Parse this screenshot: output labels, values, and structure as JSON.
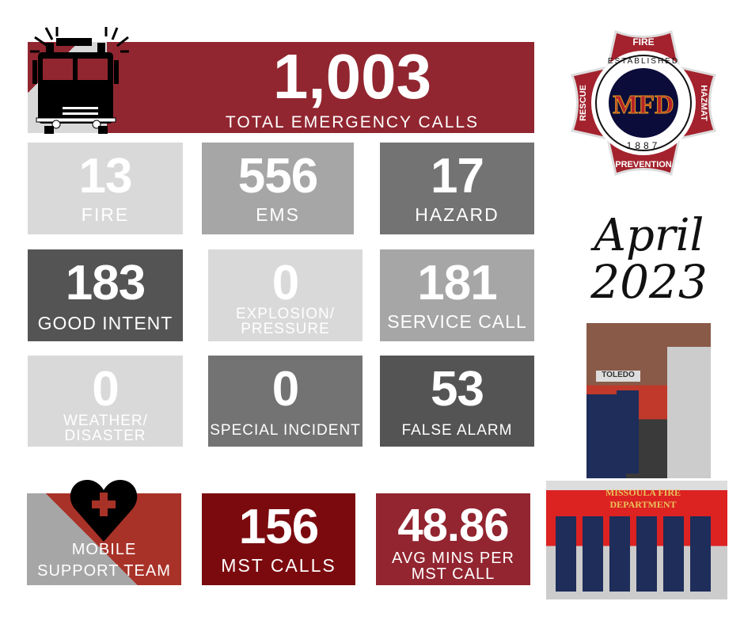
{
  "banner": {
    "total": "1,003",
    "label": "TOTAL EMERGENCY CALLS",
    "color": "#912630",
    "icon": "fire-truck-icon"
  },
  "tiles": [
    {
      "value": "13",
      "label": "FIRE",
      "color": "#d9d9d9"
    },
    {
      "value": "556",
      "label": "EMS",
      "color": "#a6a6a6"
    },
    {
      "value": "17",
      "label": "HAZARD",
      "color": "#737373"
    },
    {
      "value": "183",
      "label": "GOOD INTENT",
      "color": "#545454"
    },
    {
      "value": "0",
      "label": "EXPLOSION/ PRESSURE",
      "color": "#d9d9d9"
    },
    {
      "value": "181",
      "label": "SERVICE CALL",
      "color": "#a6a6a6"
    },
    {
      "value": "0",
      "label": "WEATHER/ DISASTER",
      "color": "#d9d9d9"
    },
    {
      "value": "0",
      "label": "SPECIAL INCIDENT",
      "color": "#737373"
    },
    {
      "value": "53",
      "label": "FALSE ALARM",
      "color": "#545454"
    }
  ],
  "mst": {
    "title": "MOBILE SUPPORT TEAM CALLS",
    "calls_value": "156",
    "calls_label": "MST CALLS",
    "avg_value": "48.86",
    "avg_label": "AVG MINS PER MST CALL",
    "icon": "heart-medical-cross-icon"
  },
  "logo": {
    "top": "FIRE",
    "left": "RESCUE",
    "right": "HAZMAT",
    "bottom": "PREVENTION",
    "ring": "ESTABLISHED",
    "year": "1887",
    "monogram": "MFD"
  },
  "period": {
    "month": "April",
    "year": "2023"
  },
  "photos": {
    "sign_1": "TOLEDO",
    "sign_2": "MISSOULA FIRE DEPARTMENT"
  }
}
